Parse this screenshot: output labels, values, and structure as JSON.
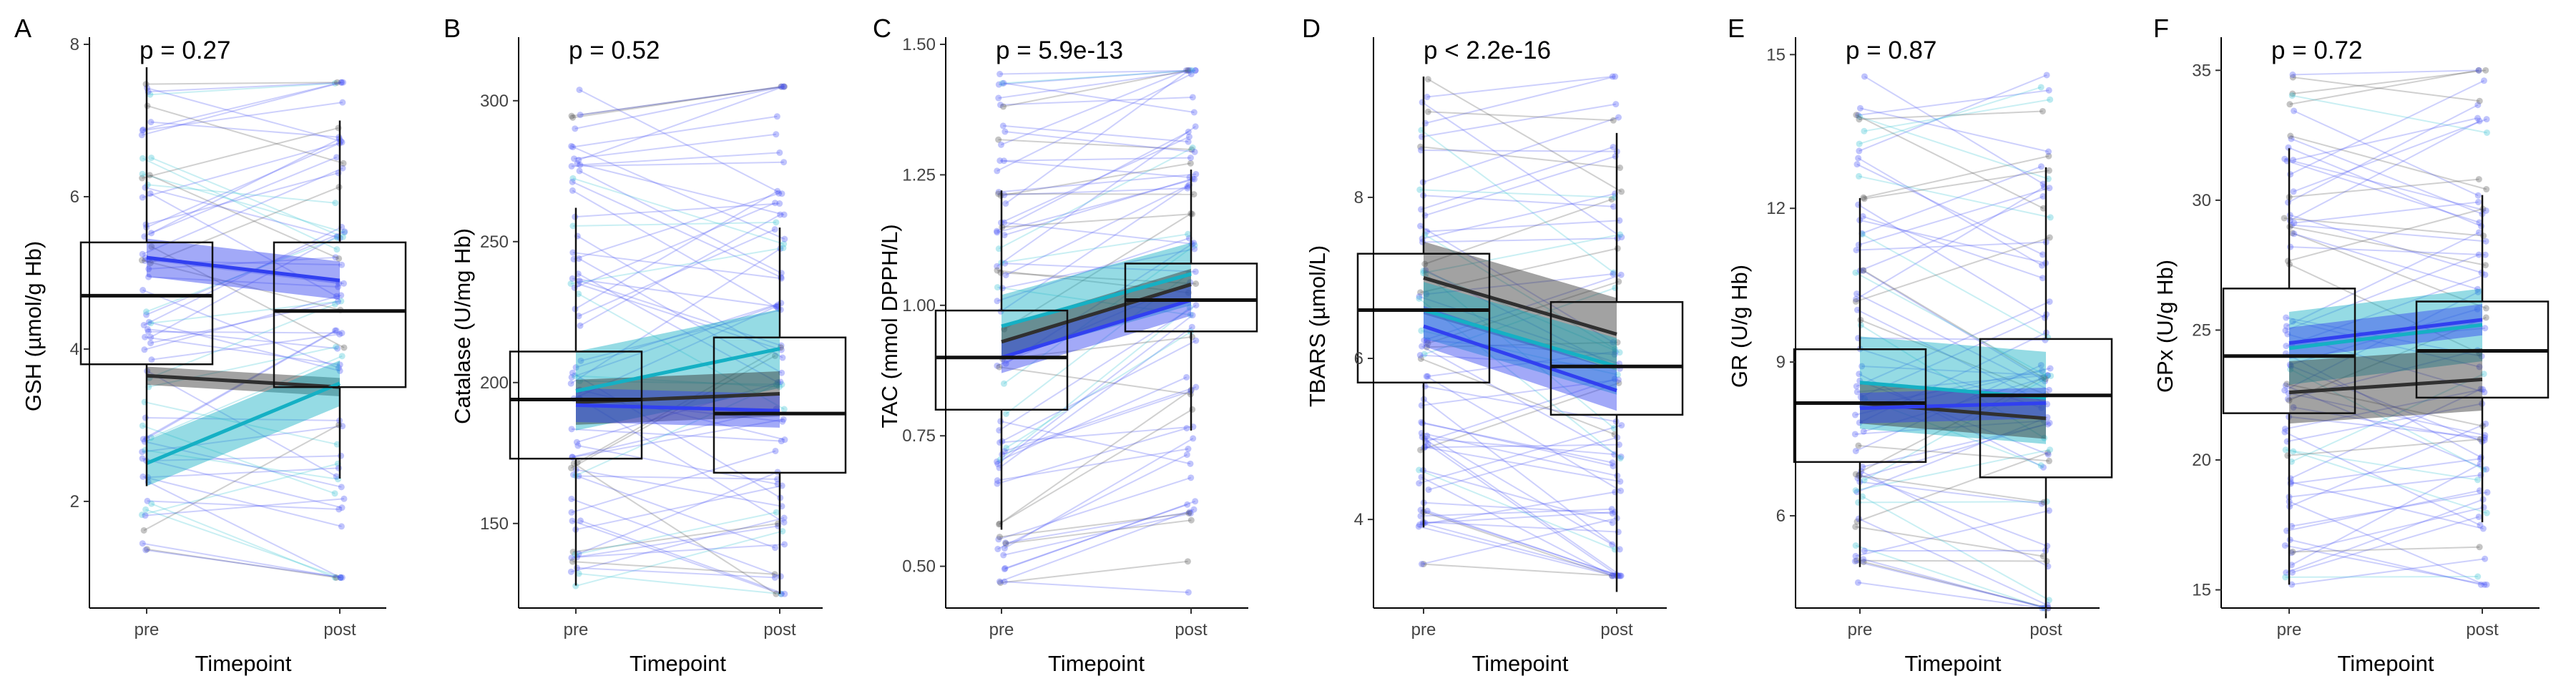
{
  "chart_data": [
    {
      "type": "box",
      "panel": "A",
      "pvalue": "p = 0.27",
      "xlabel": "Timepoint",
      "ylabel": "GSH (µmol/g Hb)",
      "categories": [
        "pre",
        "post"
      ],
      "ylim": [
        0.6,
        8.0
      ],
      "yticks": [
        2,
        4,
        6,
        8
      ],
      "boxes": [
        {
          "name": "pre",
          "q1": 3.8,
          "median": 4.7,
          "q3": 5.4,
          "whisker_low": 2.2,
          "whisker_high": 7.7
        },
        {
          "name": "post",
          "q1": 3.5,
          "median": 4.5,
          "q3": 5.4,
          "whisker_low": 2.3,
          "whisker_high": 7.0
        }
      ],
      "trends": [
        {
          "name": "group-blue",
          "color": "#3140f0",
          "pre": 5.2,
          "post": 4.9,
          "band": 0.25
        },
        {
          "name": "group-grey",
          "color": "#303030",
          "pre": 3.65,
          "post": 3.5,
          "band": 0.12
        },
        {
          "name": "group-cyan",
          "color": "#15b0c4",
          "pre": 2.5,
          "post": 3.55,
          "band": 0.3
        }
      ],
      "subjects": {
        "count": 70,
        "min": 1.0,
        "max": 7.5,
        "spread": 0.9,
        "seed": 11
      }
    },
    {
      "type": "box",
      "panel": "B",
      "pvalue": "p = 0.52",
      "xlabel": "Timepoint",
      "ylabel": "Catalase (U/mg Hb)",
      "categories": [
        "pre",
        "post"
      ],
      "ylim": [
        120,
        320
      ],
      "yticks": [
        150,
        200,
        250,
        300
      ],
      "boxes": [
        {
          "name": "pre",
          "q1": 173,
          "median": 194,
          "q3": 211,
          "whisker_low": 128,
          "whisker_high": 262
        },
        {
          "name": "post",
          "q1": 168,
          "median": 189,
          "q3": 216,
          "whisker_low": 125,
          "whisker_high": 255
        }
      ],
      "trends": [
        {
          "name": "group-cyan",
          "color": "#15b0c4",
          "pre": 197,
          "post": 212,
          "band": 14
        },
        {
          "name": "group-grey",
          "color": "#303030",
          "pre": 193,
          "post": 196,
          "band": 8
        },
        {
          "name": "group-blue",
          "color": "#3140f0",
          "pre": 192,
          "post": 190,
          "band": 6
        }
      ],
      "subjects": {
        "count": 70,
        "min": 125,
        "max": 305,
        "spread": 30,
        "seed": 23
      }
    },
    {
      "type": "box",
      "panel": "C",
      "pvalue": "p = 5.9e-13",
      "xlabel": "Timepoint",
      "ylabel": "TAC (mmol DPPH/L)",
      "categories": [
        "pre",
        "post"
      ],
      "ylim": [
        0.42,
        1.5
      ],
      "yticks": [
        0.5,
        0.75,
        1.0,
        1.25,
        1.5
      ],
      "ytick_labels": [
        "0.50",
        "0.75",
        "1.00",
        "1.25",
        "1.50"
      ],
      "boxes": [
        {
          "name": "pre",
          "q1": 0.8,
          "median": 0.9,
          "q3": 0.99,
          "whisker_low": 0.57,
          "whisker_high": 1.22
        },
        {
          "name": "post",
          "q1": 0.95,
          "median": 1.01,
          "q3": 1.08,
          "whisker_low": 0.76,
          "whisker_high": 1.26
        }
      ],
      "trends": [
        {
          "name": "group-cyan",
          "color": "#15b0c4",
          "pre": 0.96,
          "post": 1.06,
          "band": 0.06
        },
        {
          "name": "group-grey",
          "color": "#303030",
          "pre": 0.93,
          "post": 1.04,
          "band": 0.03
        },
        {
          "name": "group-blue",
          "color": "#3140f0",
          "pre": 0.9,
          "post": 1.01,
          "band": 0.03
        }
      ],
      "subjects": {
        "count": 70,
        "min": 0.45,
        "max": 1.45,
        "spread": 0.12,
        "seed": 37,
        "post_shift": 0.11
      }
    },
    {
      "type": "box",
      "panel": "D",
      "pvalue": "p < 2.2e-16",
      "xlabel": "Timepoint",
      "ylabel": "TBARS (µmol/L)",
      "categories": [
        "pre",
        "post"
      ],
      "ylim": [
        2.9,
        9.9
      ],
      "yticks": [
        4,
        6,
        8
      ],
      "boxes": [
        {
          "name": "pre",
          "q1": 5.7,
          "median": 6.6,
          "q3": 7.3,
          "whisker_low": 3.9,
          "whisker_high": 9.5
        },
        {
          "name": "post",
          "q1": 5.3,
          "median": 5.9,
          "q3": 6.7,
          "whisker_low": 3.1,
          "whisker_high": 8.8
        }
      ],
      "trends": [
        {
          "name": "group-grey",
          "color": "#303030",
          "pre": 7.0,
          "post": 6.3,
          "band": 0.45
        },
        {
          "name": "group-cyan",
          "color": "#15b0c4",
          "pre": 6.6,
          "post": 5.9,
          "band": 0.35
        },
        {
          "name": "group-blue",
          "color": "#3140f0",
          "pre": 6.4,
          "post": 5.6,
          "band": 0.25
        }
      ],
      "subjects": {
        "count": 70,
        "min": 3.3,
        "max": 9.5,
        "spread": 0.9,
        "seed": 41,
        "post_shift": -0.6
      }
    },
    {
      "type": "box",
      "panel": "E",
      "pvalue": "p = 0.87",
      "xlabel": "Timepoint",
      "ylabel": "GR (U/g Hb)",
      "categories": [
        "pre",
        "post"
      ],
      "ylim": [
        4.2,
        15.2
      ],
      "yticks": [
        6,
        9,
        12,
        15
      ],
      "boxes": [
        {
          "name": "pre",
          "q1": 7.05,
          "median": 8.2,
          "q3": 9.25,
          "whisker_low": 5.0,
          "whisker_high": 12.2
        },
        {
          "name": "post",
          "q1": 6.75,
          "median": 8.35,
          "q3": 9.45,
          "whisker_low": 4.0,
          "whisker_high": 12.8
        }
      ],
      "trends": [
        {
          "name": "group-cyan",
          "color": "#15b0c4",
          "pre": 8.6,
          "post": 8.3,
          "band": 0.9
        },
        {
          "name": "group-grey",
          "color": "#303030",
          "pre": 8.2,
          "post": 7.9,
          "band": 0.4
        },
        {
          "name": "group-blue",
          "color": "#3140f0",
          "pre": 8.1,
          "post": 8.2,
          "band": 0.3
        }
      ],
      "subjects": {
        "count": 70,
        "min": 4.2,
        "max": 14.6,
        "spread": 1.4,
        "seed": 53
      }
    },
    {
      "type": "box",
      "panel": "F",
      "pvalue": "p = 0.72",
      "xlabel": "Timepoint",
      "ylabel": "GPx (U/g Hb)",
      "categories": [
        "pre",
        "post"
      ],
      "ylim": [
        14.3,
        36.0
      ],
      "yticks": [
        15,
        20,
        25,
        30,
        35
      ],
      "boxes": [
        {
          "name": "pre",
          "q1": 21.8,
          "median": 24.0,
          "q3": 26.6,
          "whisker_low": 15.2,
          "whisker_high": 32.0
        },
        {
          "name": "post",
          "q1": 22.4,
          "median": 24.2,
          "q3": 26.1,
          "whisker_low": 17.6,
          "whisker_high": 30.2
        }
      ],
      "trends": [
        {
          "name": "group-cyan",
          "color": "#15b0c4",
          "pre": 24.3,
          "post": 25.2,
          "band": 1.4
        },
        {
          "name": "group-blue",
          "color": "#3140f0",
          "pre": 24.5,
          "post": 25.4,
          "band": 0.6
        },
        {
          "name": "group-grey",
          "color": "#303030",
          "pre": 22.6,
          "post": 23.1,
          "band": 1.2
        }
      ],
      "subjects": {
        "count": 70,
        "min": 15.2,
        "max": 35.0,
        "spread": 2.5,
        "seed": 67
      }
    }
  ]
}
